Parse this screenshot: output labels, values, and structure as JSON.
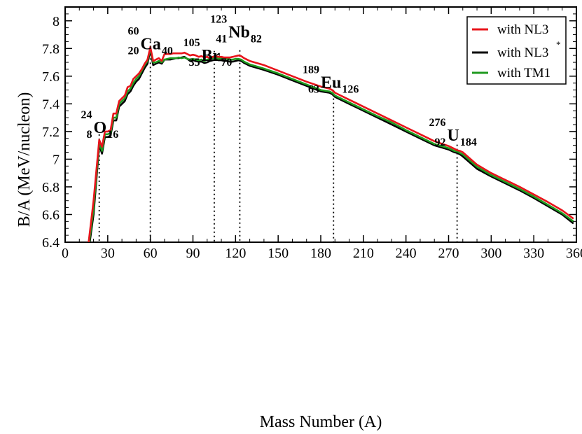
{
  "chart_data": {
    "type": "line",
    "title": "",
    "xlabel": "Mass Number (A)",
    "ylabel": "B/A (MeV/nucleon)",
    "xlim": [
      0,
      360
    ],
    "ylim": [
      6.4,
      8.1
    ],
    "xticks": [
      "0",
      "30",
      "60",
      "90",
      "120",
      "150",
      "180",
      "210",
      "240",
      "270",
      "300",
      "330",
      "360"
    ],
    "yticks": [
      "6.4",
      "6.6",
      "6.8",
      "7",
      "7.2",
      "7.4",
      "7.6",
      "7.8",
      "8"
    ],
    "grid": false,
    "legend_position": "top-right",
    "legend": [
      {
        "label": "with NL3",
        "color": "#e8141b"
      },
      {
        "label": "with NL3",
        "superscript": "*",
        "color": "#000000"
      },
      {
        "label": "with TM1",
        "color": "#1f9a1f"
      }
    ],
    "series": [
      {
        "color": "#e8141b",
        "x": [
          16,
          20,
          24,
          26,
          28,
          30,
          32,
          34,
          36,
          38,
          40,
          42,
          44,
          46,
          48,
          50,
          52,
          54,
          56,
          58,
          60,
          62,
          64,
          66,
          68,
          70,
          72,
          74,
          76,
          78,
          80,
          82,
          84,
          86,
          88,
          90,
          92,
          94,
          96,
          98,
          100,
          102,
          104,
          106,
          108,
          110,
          112,
          114,
          116,
          118,
          120,
          122,
          124,
          126,
          128,
          130,
          140,
          150,
          160,
          170,
          180,
          186,
          188,
          190,
          200,
          210,
          220,
          230,
          240,
          250,
          260,
          270,
          272,
          274,
          276,
          278,
          280,
          290,
          300,
          310,
          320,
          330,
          340,
          350,
          358
        ],
        "y": [
          6.35,
          6.7,
          7.14,
          7.09,
          7.2,
          7.2,
          7.21,
          7.33,
          7.33,
          7.42,
          7.44,
          7.46,
          7.52,
          7.53,
          7.58,
          7.6,
          7.62,
          7.65,
          7.69,
          7.72,
          7.81,
          7.71,
          7.72,
          7.73,
          7.71,
          7.76,
          7.76,
          7.76,
          7.765,
          7.765,
          7.765,
          7.765,
          7.77,
          7.76,
          7.75,
          7.755,
          7.75,
          7.74,
          7.745,
          7.735,
          7.74,
          7.73,
          7.74,
          7.745,
          7.74,
          7.74,
          7.735,
          7.735,
          7.735,
          7.74,
          7.745,
          7.75,
          7.745,
          7.73,
          7.72,
          7.71,
          7.68,
          7.64,
          7.6,
          7.56,
          7.525,
          7.51,
          7.5,
          7.48,
          7.43,
          7.38,
          7.33,
          7.28,
          7.23,
          7.18,
          7.13,
          7.095,
          7.085,
          7.075,
          7.065,
          7.06,
          7.05,
          6.96,
          6.9,
          6.85,
          6.8,
          6.745,
          6.69,
          6.63,
          6.57
        ]
      },
      {
        "color": "#000000",
        "x": [
          16,
          20,
          24,
          26,
          28,
          30,
          32,
          34,
          36,
          38,
          40,
          42,
          44,
          46,
          48,
          50,
          52,
          54,
          56,
          58,
          60,
          62,
          64,
          66,
          68,
          70,
          72,
          74,
          76,
          78,
          80,
          82,
          84,
          86,
          88,
          90,
          92,
          94,
          96,
          98,
          100,
          102,
          104,
          106,
          108,
          110,
          112,
          114,
          116,
          118,
          120,
          122,
          124,
          126,
          128,
          130,
          140,
          150,
          160,
          170,
          180,
          186,
          188,
          190,
          200,
          210,
          220,
          230,
          240,
          250,
          260,
          270,
          272,
          274,
          276,
          278,
          280,
          290,
          300,
          310,
          320,
          330,
          340,
          350,
          358
        ],
        "y": [
          6.3,
          6.6,
          7.1,
          7.04,
          7.16,
          7.16,
          7.17,
          7.28,
          7.28,
          7.38,
          7.4,
          7.42,
          7.47,
          7.49,
          7.53,
          7.56,
          7.58,
          7.62,
          7.66,
          7.69,
          7.79,
          7.68,
          7.69,
          7.7,
          7.69,
          7.72,
          7.72,
          7.72,
          7.725,
          7.73,
          7.73,
          7.735,
          7.74,
          7.725,
          7.71,
          7.715,
          7.71,
          7.705,
          7.705,
          7.695,
          7.7,
          7.71,
          7.715,
          7.72,
          7.715,
          7.715,
          7.71,
          7.71,
          7.705,
          7.705,
          7.71,
          7.715,
          7.71,
          7.695,
          7.685,
          7.675,
          7.645,
          7.61,
          7.57,
          7.53,
          7.49,
          7.48,
          7.47,
          7.45,
          7.4,
          7.35,
          7.3,
          7.25,
          7.2,
          7.15,
          7.1,
          7.07,
          7.06,
          7.05,
          7.045,
          7.035,
          7.02,
          6.93,
          6.875,
          6.825,
          6.775,
          6.72,
          6.66,
          6.6,
          6.535
        ]
      },
      {
        "color": "#1f9a1f",
        "x": [
          16,
          20,
          24,
          26,
          28,
          30,
          32,
          34,
          36,
          38,
          40,
          42,
          44,
          46,
          48,
          50,
          52,
          54,
          56,
          58,
          60,
          62,
          64,
          66,
          68,
          70,
          72,
          74,
          76,
          78,
          80,
          82,
          84,
          86,
          88,
          90,
          92,
          94,
          96,
          98,
          100,
          102,
          104,
          106,
          108,
          110,
          112,
          114,
          116,
          118,
          120,
          122,
          124,
          126,
          128,
          130,
          140,
          150,
          160,
          170,
          180,
          186,
          188,
          190,
          200,
          210,
          220,
          230,
          240,
          250,
          260,
          270,
          272,
          274,
          276,
          278,
          280,
          290,
          300,
          310,
          320,
          330,
          340,
          350,
          358
        ],
        "y": [
          6.32,
          6.64,
          7.12,
          7.06,
          7.18,
          7.18,
          7.19,
          7.3,
          7.3,
          7.4,
          7.42,
          7.44,
          7.49,
          7.51,
          7.55,
          7.58,
          7.6,
          7.64,
          7.68,
          7.71,
          7.8,
          7.7,
          7.7,
          7.71,
          7.7,
          7.72,
          7.725,
          7.73,
          7.73,
          7.73,
          7.735,
          7.73,
          7.735,
          7.725,
          7.72,
          7.725,
          7.72,
          7.715,
          7.72,
          7.71,
          7.72,
          7.725,
          7.73,
          7.735,
          7.725,
          7.73,
          7.725,
          7.725,
          7.72,
          7.72,
          7.725,
          7.725,
          7.72,
          7.705,
          7.695,
          7.685,
          7.655,
          7.62,
          7.58,
          7.54,
          7.5,
          7.49,
          7.48,
          7.46,
          7.41,
          7.36,
          7.31,
          7.265,
          7.21,
          7.16,
          7.11,
          7.08,
          7.07,
          7.06,
          7.055,
          7.045,
          7.035,
          6.945,
          6.885,
          6.835,
          6.785,
          6.73,
          6.67,
          6.61,
          6.55
        ]
      }
    ],
    "marker_lines": [
      24,
      60,
      105,
      123,
      189,
      276
    ],
    "annotations": [
      {
        "name": "o24",
        "mass": "24",
        "proton": "8",
        "element": "O",
        "neutron": "16",
        "mx": 20,
        "my": 7.225
      },
      {
        "name": "ca60",
        "mass": "60",
        "proton": "20",
        "element": "Ca",
        "neutron": "40",
        "mx": 53,
        "my": 7.83
      },
      {
        "name": "br105",
        "mass": "105",
        "proton": "35",
        "element": "Br",
        "neutron": "70",
        "mx": 96,
        "my": 7.745
      },
      {
        "name": "nb123",
        "mass": "123",
        "proton": "41",
        "element": "Nb",
        "neutron": "82",
        "mx": 115,
        "my": 7.915
      },
      {
        "name": "eu189",
        "mass": "189",
        "proton": "63",
        "element": "Eu",
        "neutron": "126",
        "mx": 180,
        "my": 7.55
      },
      {
        "name": "u276",
        "mass": "276",
        "proton": "92",
        "element": "U",
        "neutron": "184",
        "mx": 269,
        "my": 7.17
      }
    ]
  }
}
